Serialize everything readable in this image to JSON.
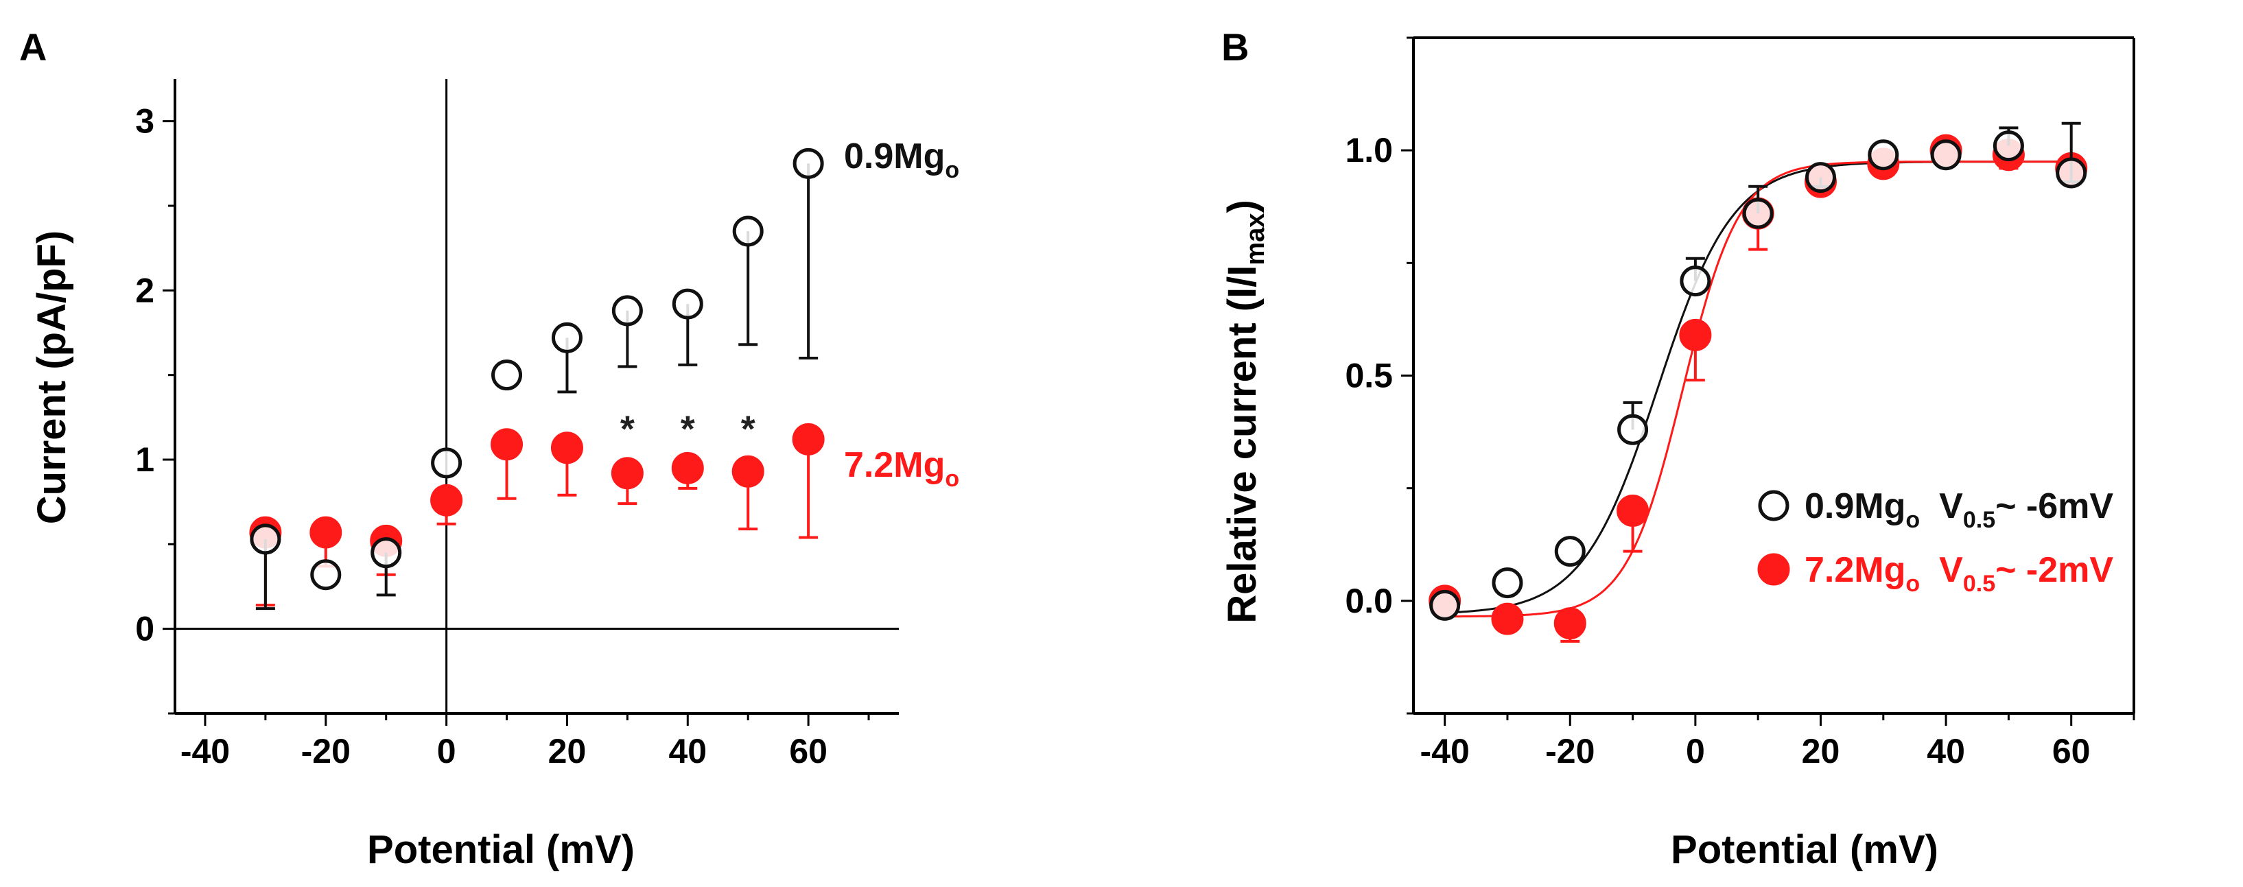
{
  "colors": {
    "control": "#111111",
    "high_mg": "#ff1a1a",
    "axis": "#000000"
  },
  "chart_data": [
    {
      "panel": "A",
      "type": "scatter",
      "xlabel": "Potential (mV)",
      "ylabel": "Current (pA/pF)",
      "xlim": [
        -45,
        75
      ],
      "ylim": [
        -0.5,
        3.25
      ],
      "xticks": [
        "-40",
        "-20",
        "0",
        "20",
        "40",
        "60"
      ],
      "yticks": [
        "0",
        "1",
        "2",
        "3"
      ],
      "reference_lines": {
        "x0": true,
        "y0": true
      },
      "annotations": [
        {
          "text": "*",
          "x": 30,
          "y": 1.22
        },
        {
          "text": "*",
          "x": 40,
          "y": 1.22
        },
        {
          "text": "*",
          "x": 50,
          "y": 1.22
        }
      ],
      "series": [
        {
          "name_main": "0.9Mg",
          "name_sub": "o",
          "marker": "open-circle",
          "color": "#111111",
          "x": [
            -30,
            -20,
            -10,
            0,
            10,
            20,
            30,
            40,
            50,
            60
          ],
          "y": [
            0.53,
            0.32,
            0.45,
            0.98,
            1.5,
            1.72,
            1.88,
            1.92,
            2.35,
            2.75
          ],
          "err_low": [
            0.41,
            0.0,
            0.25,
            0.0,
            0.0,
            0.32,
            0.33,
            0.36,
            0.67,
            1.15
          ],
          "err_high": [
            0.0,
            0.0,
            0.0,
            0.0,
            0.0,
            0.0,
            0.0,
            0.0,
            0.0,
            0.0
          ]
        },
        {
          "name_main": "7.2Mg",
          "name_sub": "o",
          "marker": "filled-circle",
          "color": "#ff1a1a",
          "x": [
            -30,
            -20,
            -10,
            0,
            10,
            20,
            30,
            40,
            50,
            60
          ],
          "y": [
            0.57,
            0.57,
            0.52,
            0.76,
            1.09,
            1.07,
            0.92,
            0.95,
            0.93,
            1.12
          ],
          "err_low": [
            0.43,
            0.2,
            0.2,
            0.14,
            0.32,
            0.28,
            0.18,
            0.12,
            0.34,
            0.58
          ],
          "err_high": [
            0.0,
            0.0,
            0.0,
            0.0,
            0.0,
            0.0,
            0.0,
            0.0,
            0.0,
            0.0
          ]
        }
      ]
    },
    {
      "panel": "B",
      "type": "scatter",
      "xlabel": "Potential (mV)",
      "ylabel_main": "Relative current (I/I",
      "ylabel_sub": "max",
      "ylabel_tail": ")",
      "xlim": [
        -45,
        70
      ],
      "ylim": [
        -0.25,
        1.25
      ],
      "xticks": [
        "-40",
        "-20",
        "0",
        "20",
        "40",
        "60"
      ],
      "yticks": [
        "0.0",
        "0.5",
        "1.0"
      ],
      "series": [
        {
          "name_main": "0.9Mg",
          "name_sub": "o",
          "v_label_main": "V",
          "v_label_sub": "0.5",
          "v_label_tail": "~ -6mV",
          "marker": "open-circle",
          "color": "#111111",
          "x": [
            -40,
            -30,
            -20,
            -10,
            0,
            10,
            20,
            30,
            40,
            50,
            60
          ],
          "y": [
            -0.01,
            0.04,
            0.11,
            0.38,
            0.71,
            0.86,
            0.94,
            0.99,
            0.99,
            1.01,
            0.95
          ],
          "err_low": [
            0.0,
            0.0,
            0.0,
            0.0,
            0.0,
            0.0,
            0.02,
            0.0,
            0.0,
            0.0,
            0.02
          ],
          "err_high": [
            0.0,
            0.0,
            0.0,
            0.06,
            0.05,
            0.06,
            0.0,
            0.0,
            0.0,
            0.04,
            0.11
          ],
          "fit": {
            "v_half": -6,
            "k": 6.0,
            "bottom": -0.03,
            "top": 0.975
          }
        },
        {
          "name_main": "7.2Mg",
          "name_sub": "o",
          "v_label_main": "V",
          "v_label_sub": "0.5",
          "v_label_tail": "~ -2mV",
          "marker": "filled-circle",
          "color": "#ff1a1a",
          "x": [
            -40,
            -30,
            -20,
            -10,
            0,
            10,
            20,
            30,
            40,
            50,
            60
          ],
          "y": [
            0.0,
            -0.04,
            -0.05,
            0.2,
            0.59,
            0.86,
            0.93,
            0.97,
            1.0,
            0.99,
            0.96
          ],
          "err_low": [
            0.0,
            0.0,
            0.04,
            0.09,
            0.1,
            0.08,
            0.0,
            0.0,
            0.0,
            0.03,
            0.0
          ],
          "err_high": [
            0.0,
            0.0,
            0.0,
            0.0,
            0.0,
            0.0,
            0.0,
            0.0,
            0.0,
            0.0,
            0.0
          ],
          "fit": {
            "v_half": -2,
            "k": 4.5,
            "bottom": -0.035,
            "top": 0.975
          }
        }
      ]
    }
  ]
}
